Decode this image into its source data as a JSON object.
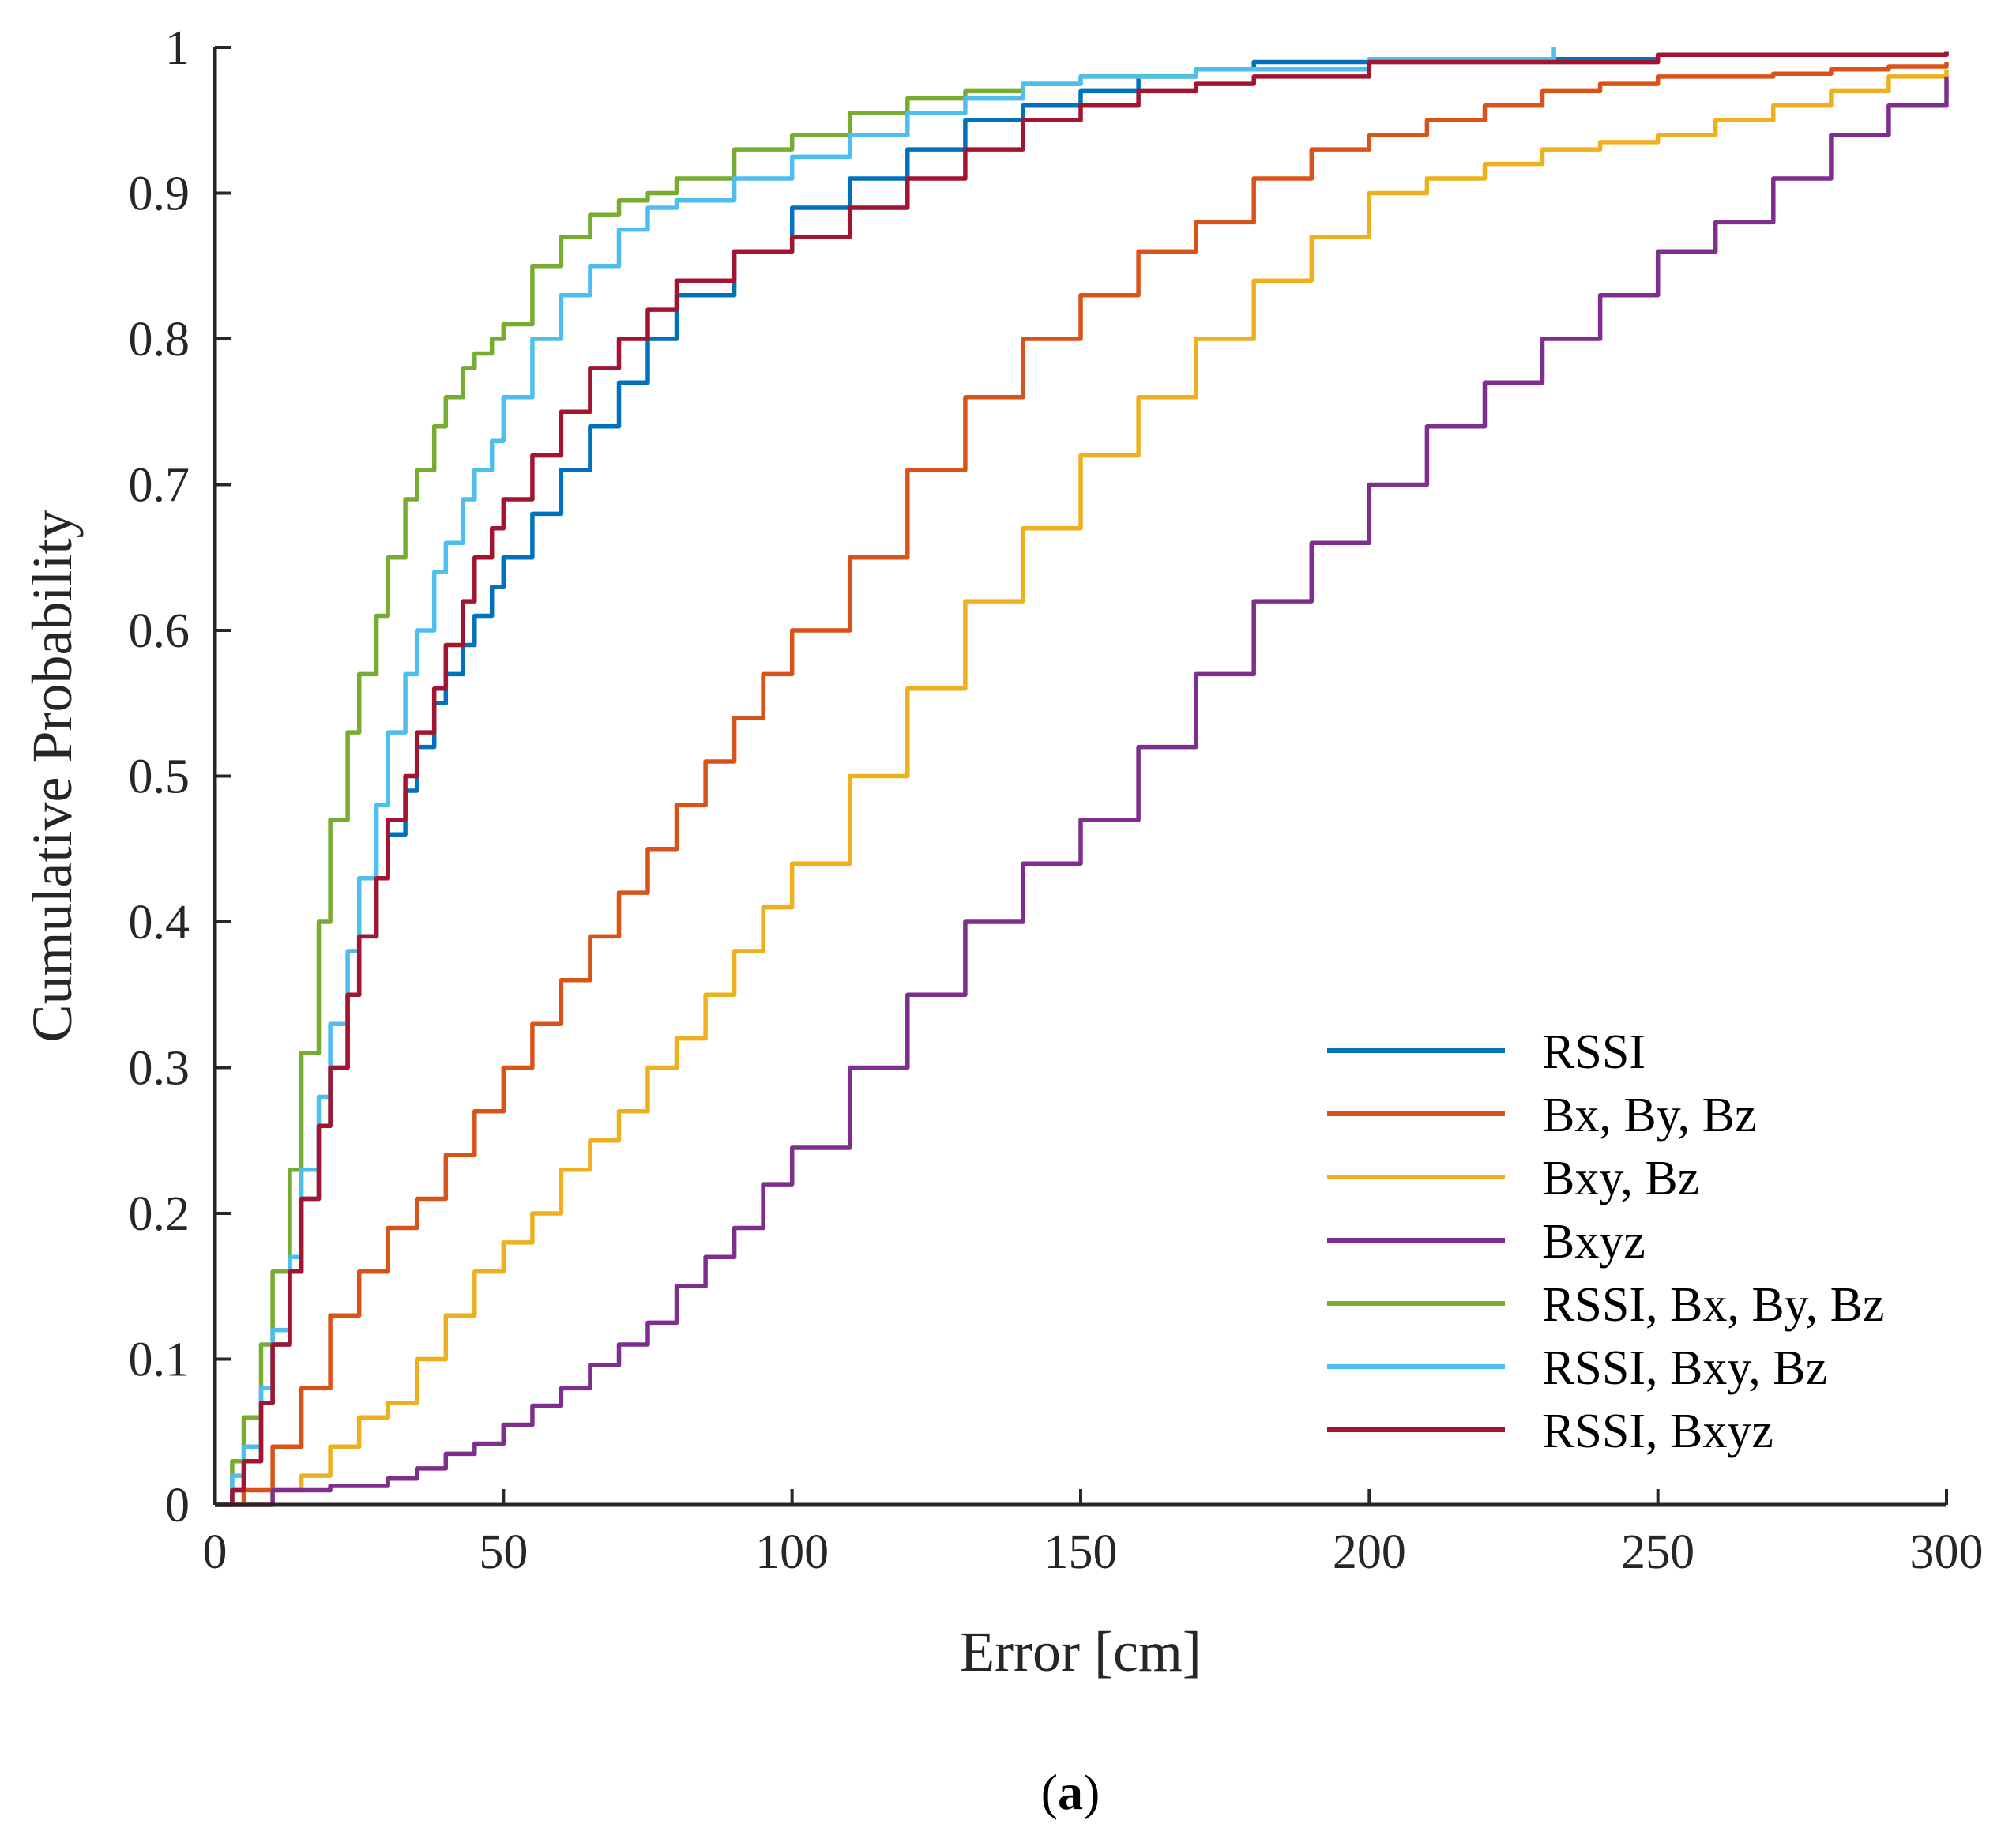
{
  "chart_data": {
    "type": "line",
    "title": "",
    "xlabel": "Error [cm]",
    "ylabel": "Cumulative Probability",
    "xlim": [
      0,
      300
    ],
    "ylim": [
      0,
      1
    ],
    "xticks": [
      0,
      50,
      100,
      150,
      200,
      250,
      300
    ],
    "xtick_labels": [
      "0",
      "50",
      "100",
      "150",
      "200",
      "250",
      "300"
    ],
    "yticks": [
      0,
      0.1,
      0.2,
      0.3,
      0.4,
      0.5,
      0.6,
      0.7,
      0.8,
      0.9,
      1
    ],
    "ytick_labels": [
      "0",
      "0.1",
      "0.2",
      "0.3",
      "0.4",
      "0.5",
      "0.6",
      "0.7",
      "0.8",
      "0.9",
      "1"
    ],
    "grid": false,
    "legend_position": "bottom-right",
    "series": [
      {
        "name": "RSSI",
        "color": "#0072BD",
        "x": [
          0,
          3,
          5,
          8,
          10,
          13,
          15,
          18,
          20,
          23,
          25,
          28,
          30,
          33,
          35,
          38,
          40,
          43,
          45,
          48,
          50,
          55,
          60,
          65,
          70,
          75,
          80,
          90,
          100,
          110,
          120,
          130,
          140,
          150,
          160,
          170,
          180,
          200,
          250,
          300
        ],
        "y": [
          0,
          0.01,
          0.03,
          0.07,
          0.11,
          0.16,
          0.21,
          0.26,
          0.3,
          0.35,
          0.39,
          0.43,
          0.46,
          0.49,
          0.52,
          0.55,
          0.57,
          0.59,
          0.61,
          0.63,
          0.65,
          0.68,
          0.71,
          0.74,
          0.77,
          0.8,
          0.83,
          0.86,
          0.89,
          0.91,
          0.93,
          0.95,
          0.96,
          0.97,
          0.98,
          0.985,
          0.99,
          0.992,
          0.995,
          0.997
        ]
      },
      {
        "name": "Bx, By, Bz",
        "color": "#D95319",
        "x": [
          0,
          5,
          10,
          15,
          20,
          25,
          30,
          35,
          40,
          45,
          50,
          55,
          60,
          65,
          70,
          75,
          80,
          85,
          90,
          95,
          100,
          110,
          120,
          130,
          140,
          150,
          160,
          170,
          180,
          190,
          200,
          210,
          220,
          230,
          240,
          250,
          260,
          270,
          280,
          290,
          300
        ],
        "y": [
          0,
          0.01,
          0.04,
          0.08,
          0.13,
          0.16,
          0.19,
          0.21,
          0.24,
          0.27,
          0.3,
          0.33,
          0.36,
          0.39,
          0.42,
          0.45,
          0.48,
          0.51,
          0.54,
          0.57,
          0.6,
          0.65,
          0.71,
          0.76,
          0.8,
          0.83,
          0.86,
          0.88,
          0.91,
          0.93,
          0.94,
          0.95,
          0.96,
          0.97,
          0.975,
          0.98,
          0.98,
          0.982,
          0.985,
          0.987,
          0.99
        ]
      },
      {
        "name": "Bxy, Bz",
        "color": "#EDB120",
        "x": [
          0,
          10,
          15,
          20,
          25,
          30,
          35,
          40,
          45,
          50,
          55,
          60,
          65,
          70,
          75,
          80,
          85,
          90,
          95,
          100,
          110,
          120,
          130,
          140,
          150,
          160,
          170,
          180,
          190,
          200,
          210,
          220,
          230,
          240,
          250,
          260,
          270,
          280,
          290,
          300
        ],
        "y": [
          0,
          0.01,
          0.02,
          0.04,
          0.06,
          0.07,
          0.1,
          0.13,
          0.16,
          0.18,
          0.2,
          0.23,
          0.25,
          0.27,
          0.3,
          0.32,
          0.35,
          0.38,
          0.41,
          0.44,
          0.5,
          0.56,
          0.62,
          0.67,
          0.72,
          0.76,
          0.8,
          0.84,
          0.87,
          0.9,
          0.91,
          0.92,
          0.93,
          0.935,
          0.94,
          0.95,
          0.96,
          0.97,
          0.98,
          0.985
        ]
      },
      {
        "name": "Bxyz",
        "color": "#7E2F8E",
        "x": [
          0,
          10,
          20,
          30,
          35,
          40,
          45,
          50,
          55,
          60,
          65,
          70,
          75,
          80,
          85,
          90,
          95,
          100,
          110,
          120,
          130,
          140,
          150,
          160,
          170,
          180,
          190,
          200,
          210,
          220,
          230,
          240,
          250,
          260,
          270,
          280,
          290,
          300
        ],
        "y": [
          0,
          0.01,
          0.013,
          0.018,
          0.025,
          0.035,
          0.042,
          0.055,
          0.068,
          0.08,
          0.096,
          0.11,
          0.125,
          0.15,
          0.17,
          0.19,
          0.22,
          0.245,
          0.3,
          0.35,
          0.4,
          0.44,
          0.47,
          0.52,
          0.57,
          0.62,
          0.66,
          0.7,
          0.74,
          0.77,
          0.8,
          0.83,
          0.86,
          0.88,
          0.91,
          0.94,
          0.96,
          0.98
        ]
      },
      {
        "name": "RSSI, Bx, By, Bz",
        "color": "#77AC30",
        "x": [
          0,
          3,
          5,
          8,
          10,
          13,
          15,
          18,
          20,
          23,
          25,
          28,
          30,
          33,
          35,
          38,
          40,
          43,
          45,
          48,
          50,
          55,
          60,
          65,
          70,
          75,
          80,
          90,
          100,
          110,
          120,
          130,
          140,
          150,
          170,
          200,
          250,
          300
        ],
        "y": [
          0,
          0.03,
          0.06,
          0.11,
          0.16,
          0.23,
          0.31,
          0.4,
          0.47,
          0.53,
          0.57,
          0.61,
          0.65,
          0.69,
          0.71,
          0.74,
          0.76,
          0.78,
          0.79,
          0.8,
          0.81,
          0.85,
          0.87,
          0.885,
          0.895,
          0.9,
          0.91,
          0.93,
          0.94,
          0.955,
          0.965,
          0.97,
          0.975,
          0.98,
          0.985,
          0.99,
          0.995,
          0.997
        ]
      },
      {
        "name": "RSSI, Bxy, Bz",
        "color": "#4DBEEE",
        "x": [
          0,
          3,
          5,
          8,
          10,
          13,
          15,
          18,
          20,
          23,
          25,
          28,
          30,
          33,
          35,
          38,
          40,
          43,
          45,
          48,
          50,
          55,
          60,
          65,
          70,
          75,
          80,
          90,
          100,
          110,
          120,
          130,
          140,
          150,
          170,
          200,
          232
        ],
        "y": [
          0,
          0.02,
          0.04,
          0.08,
          0.12,
          0.17,
          0.23,
          0.28,
          0.33,
          0.38,
          0.43,
          0.48,
          0.53,
          0.57,
          0.6,
          0.64,
          0.66,
          0.69,
          0.71,
          0.73,
          0.76,
          0.8,
          0.83,
          0.85,
          0.875,
          0.89,
          0.895,
          0.91,
          0.925,
          0.94,
          0.955,
          0.965,
          0.975,
          0.98,
          0.985,
          0.992,
          1
        ]
      },
      {
        "name": "RSSI, Bxyz",
        "color": "#A2142F",
        "x": [
          0,
          3,
          5,
          8,
          10,
          13,
          15,
          18,
          20,
          23,
          25,
          28,
          30,
          33,
          35,
          38,
          40,
          43,
          45,
          48,
          50,
          55,
          60,
          65,
          70,
          75,
          80,
          90,
          100,
          110,
          120,
          130,
          140,
          150,
          160,
          170,
          180,
          200,
          250,
          300
        ],
        "y": [
          0,
          0.01,
          0.03,
          0.07,
          0.11,
          0.16,
          0.21,
          0.26,
          0.3,
          0.35,
          0.39,
          0.43,
          0.47,
          0.5,
          0.53,
          0.56,
          0.59,
          0.62,
          0.65,
          0.67,
          0.69,
          0.72,
          0.75,
          0.78,
          0.8,
          0.82,
          0.84,
          0.86,
          0.87,
          0.89,
          0.91,
          0.93,
          0.95,
          0.96,
          0.97,
          0.975,
          0.98,
          0.99,
          0.995,
          0.997
        ]
      }
    ]
  },
  "caption": {
    "open": "(",
    "letter": "a",
    "close": ")"
  }
}
